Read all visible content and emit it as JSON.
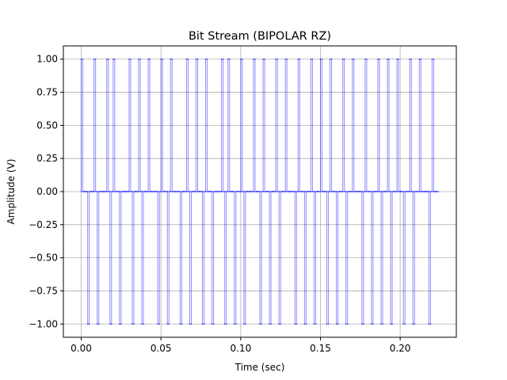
{
  "chart_data": {
    "type": "line",
    "title": "Bit Stream (BIPOLAR RZ)",
    "xlabel": "Time (sec)",
    "ylabel": "Amplitude (V)",
    "xlim": [
      -0.0112,
      0.2352
    ],
    "ylim": [
      -1.1,
      1.1
    ],
    "x_ticks": [
      0.0,
      0.05,
      0.1,
      0.15,
      0.2
    ],
    "x_tick_labels": [
      "0.00",
      "0.05",
      "0.10",
      "0.15",
      "0.20"
    ],
    "y_ticks": [
      1.0,
      0.75,
      0.5,
      0.25,
      0.0,
      -0.25,
      -0.5,
      -0.75,
      -1.0
    ],
    "y_tick_labels": [
      "1.00",
      "0.75",
      "0.50",
      "0.25",
      "0.00",
      "−0.25",
      "−0.50",
      "−0.75",
      "−1.00"
    ],
    "grid": true,
    "line_color": "#0000ff",
    "bit_period": 0.002,
    "duty_cycle": 0.5,
    "amplitude_levels": [
      1.0,
      0.0,
      -1.0
    ],
    "bits": [
      1,
      0,
      1,
      0,
      1,
      1,
      0,
      0,
      1,
      1,
      1,
      0,
      1,
      0,
      0,
      1,
      1,
      0,
      1,
      1,
      0,
      1,
      0,
      0,
      1,
      1,
      0,
      1,
      1,
      0,
      0,
      1,
      0,
      1,
      1,
      0,
      1,
      0,
      1,
      1,
      0,
      1,
      0,
      0,
      1,
      1,
      1,
      0,
      1,
      0,
      1,
      1,
      0,
      0,
      1,
      0,
      1,
      1,
      0,
      1,
      0,
      1,
      1,
      0,
      1,
      0,
      0,
      1,
      1,
      0,
      1,
      0,
      1,
      1,
      0,
      1,
      0,
      1,
      1,
      0,
      1,
      0,
      1,
      1,
      0,
      1,
      0,
      0,
      1,
      1,
      0,
      1,
      0,
      1,
      1,
      0,
      1,
      1,
      0,
      1,
      0,
      1,
      0,
      1,
      1,
      0,
      1,
      0,
      0,
      1,
      1,
      0
    ]
  }
}
